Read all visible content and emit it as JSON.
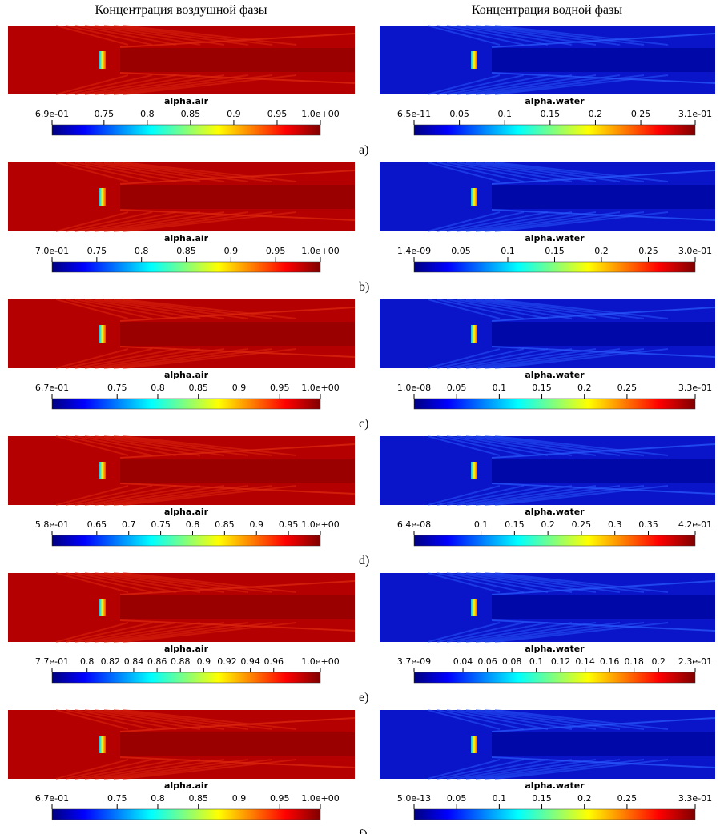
{
  "headings": [
    "Концентрация воздушной фазы",
    "Концентрация водной фазы"
  ],
  "rows": [
    {
      "label": "a)",
      "left": {
        "title": "alpha.air",
        "ticks": [
          "6.9e-01",
          "0.75",
          "0.8",
          "0.85",
          "0.9",
          "0.95",
          "1.0e+00"
        ]
      },
      "right": {
        "title": "alpha.water",
        "ticks": [
          "6.5e-11",
          "0.05",
          "0.1",
          "0.15",
          "0.2",
          "0.25",
          "3.1e-01"
        ]
      }
    },
    {
      "label": "b)",
      "left": {
        "title": "alpha.air",
        "ticks": [
          "7.0e-01",
          "0.75",
          "0.8",
          "0.85",
          "0.9",
          "0.95",
          "1.0e+00"
        ]
      },
      "right": {
        "title": "alpha.water",
        "ticks": [
          "1.4e-09",
          "0.05",
          "0.1",
          "0.15",
          "0.2",
          "0.25",
          "3.0e-01"
        ]
      }
    },
    {
      "label": "c)",
      "left": {
        "title": "alpha.air",
        "ticks": [
          "6.7e-01",
          "0.75",
          "0.8",
          "0.85",
          "0.9",
          "0.95",
          "1.0e+00"
        ]
      },
      "right": {
        "title": "alpha.water",
        "ticks": [
          "1.0e-08",
          "0.05",
          "0.1",
          "0.15",
          "0.2",
          "0.25",
          "3.3e-01"
        ]
      }
    },
    {
      "label": "d)",
      "left": {
        "title": "alpha.air",
        "ticks": [
          "5.8e-01",
          "0.65",
          "0.7",
          "0.75",
          "0.8",
          "0.85",
          "0.9",
          "0.95",
          "1.0e+00"
        ]
      },
      "right": {
        "title": "alpha.water",
        "ticks": [
          "6.4e-08",
          "0.1",
          "0.15",
          "0.2",
          "0.25",
          "0.3",
          "0.35",
          "4.2e-01"
        ]
      }
    },
    {
      "label": "e)",
      "left": {
        "title": "alpha.air",
        "ticks": [
          "7.7e-01",
          "0.8",
          "0.82",
          "0.84",
          "0.86",
          "0.88",
          "0.9",
          "0.92",
          "0.94",
          "0.96",
          "1.0e+00"
        ]
      },
      "right": {
        "title": "alpha.water",
        "ticks": [
          "3.7e-09",
          "0.04",
          "0.06",
          "0.08",
          "0.1",
          "0.12",
          "0.14",
          "0.16",
          "0.18",
          "0.2",
          "2.3e-01"
        ]
      }
    },
    {
      "label": "f)",
      "left": {
        "title": "alpha.air",
        "ticks": [
          "6.7e-01",
          "0.75",
          "0.8",
          "0.85",
          "0.9",
          "0.95",
          "1.0e+00"
        ]
      },
      "right": {
        "title": "alpha.water",
        "ticks": [
          "5.0e-13",
          "0.05",
          "0.1",
          "0.15",
          "0.2",
          "0.25",
          "3.3e-01"
        ]
      }
    }
  ]
}
